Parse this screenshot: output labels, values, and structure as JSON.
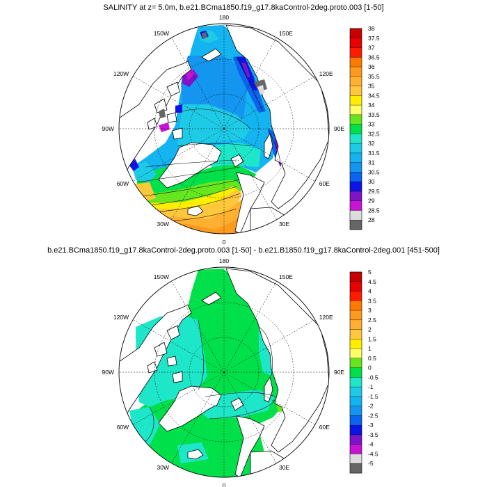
{
  "panels": [
    {
      "title": "SALINITY at z=   5.0m, b.e21.BCma1850.f19_g17.8kaControl-2deg.proto.003 [1-50]",
      "lon_labels": [
        "180",
        "150E",
        "120E",
        "90E",
        "60E",
        "30E",
        "0",
        "30W",
        "60W",
        "90W",
        "120W",
        "150W"
      ],
      "colorbar": {
        "labels": [
          "38",
          "37.5",
          "37",
          "36.5",
          "36",
          "35.5",
          "35",
          "34.5",
          "34",
          "33.5",
          "33",
          "32.5",
          "32",
          "31.5",
          "31",
          "30.5",
          "30",
          "29.5",
          "29",
          "28.5",
          "28"
        ],
        "colors": [
          "#c80000",
          "#e60000",
          "#ff1a00",
          "#ff7a00",
          "#ff9a1e",
          "#ffb030",
          "#ffc83c",
          "#ffee00",
          "#ffff66",
          "#66e61e",
          "#00e04a",
          "#1ee6c8",
          "#1ecbe6",
          "#14b4f0",
          "#1496f0",
          "#0a64f0",
          "#0a14e6",
          "#7d14c8",
          "#c814d2",
          "#dcdcdc",
          "#666666"
        ]
      }
    },
    {
      "title": "b.e21.BCma1850.f19_g17.8kaControl-2deg.proto.003 [1-50] - b.e21.B1850.f19_g17.8kaControl-2deg.001 [451-500]",
      "lon_labels": [
        "180",
        "150E",
        "120E",
        "90E",
        "60E",
        "30E",
        "0",
        "30W",
        "60W",
        "90W",
        "120W",
        "150W"
      ],
      "colorbar": {
        "labels": [
          "5",
          "4.5",
          "4",
          "3.5",
          "3",
          "2.5",
          "2",
          "1.5",
          "1",
          "0.5",
          "0",
          "-0.5",
          "-1",
          "-1.5",
          "-2",
          "-2.5",
          "-3",
          "-3.5",
          "-4",
          "-4.5",
          "-5"
        ],
        "colors": [
          "#c80000",
          "#e60000",
          "#ff1a00",
          "#ff7a00",
          "#ff9a1e",
          "#ffb030",
          "#ffc83c",
          "#ffee00",
          "#ffff66",
          "#66e61e",
          "#00e04a",
          "#1ee6c8",
          "#1ecbe6",
          "#14b4f0",
          "#1496f0",
          "#0a64f0",
          "#0a14e6",
          "#7d14c8",
          "#c814d2",
          "#dcdcdc",
          "#666666"
        ]
      }
    }
  ]
}
